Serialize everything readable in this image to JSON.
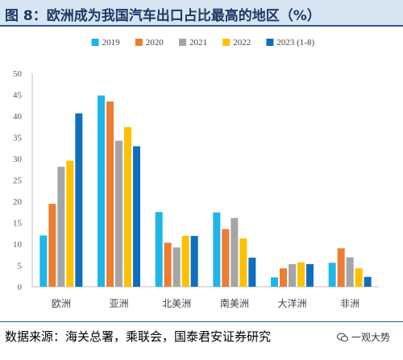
{
  "header": {
    "title": "图 8：欧洲成为我国汽车出口占比最高的地区（%）"
  },
  "footer": {
    "source": "数据来源：海关总署，乘联会，国泰君安证券研究",
    "watermark": "一观大势"
  },
  "chart_data": {
    "type": "bar",
    "title": "",
    "xlabel": "",
    "ylabel": "",
    "ylim": [
      0,
      50
    ],
    "yticks": [
      "0",
      "5",
      "10",
      "15",
      "20",
      "25",
      "30",
      "35",
      "40",
      "45",
      "50"
    ],
    "grid": false,
    "legend_position": "top",
    "categories": [
      "欧洲",
      "亚洲",
      "北美洲",
      "南美洲",
      "大洋洲",
      "非洲"
    ],
    "series": [
      {
        "name": "2019",
        "color": "#1fb5e8",
        "values": [
          12.0,
          44.8,
          17.5,
          17.4,
          2.2,
          5.6
        ]
      },
      {
        "name": "2020",
        "color": "#ed7d31",
        "values": [
          19.4,
          43.4,
          10.3,
          13.5,
          4.3,
          9.0
        ]
      },
      {
        "name": "2021",
        "color": "#a5a5a5",
        "values": [
          28.1,
          34.2,
          9.2,
          16.1,
          5.3,
          6.9
        ]
      },
      {
        "name": "2022",
        "color": "#ffc000",
        "values": [
          29.5,
          37.4,
          11.9,
          11.3,
          5.7,
          4.3
        ]
      },
      {
        "name": "2023 (1-8)",
        "color": "#0f6fbe",
        "values": [
          40.6,
          32.9,
          11.9,
          6.8,
          5.3,
          2.3
        ]
      }
    ]
  }
}
